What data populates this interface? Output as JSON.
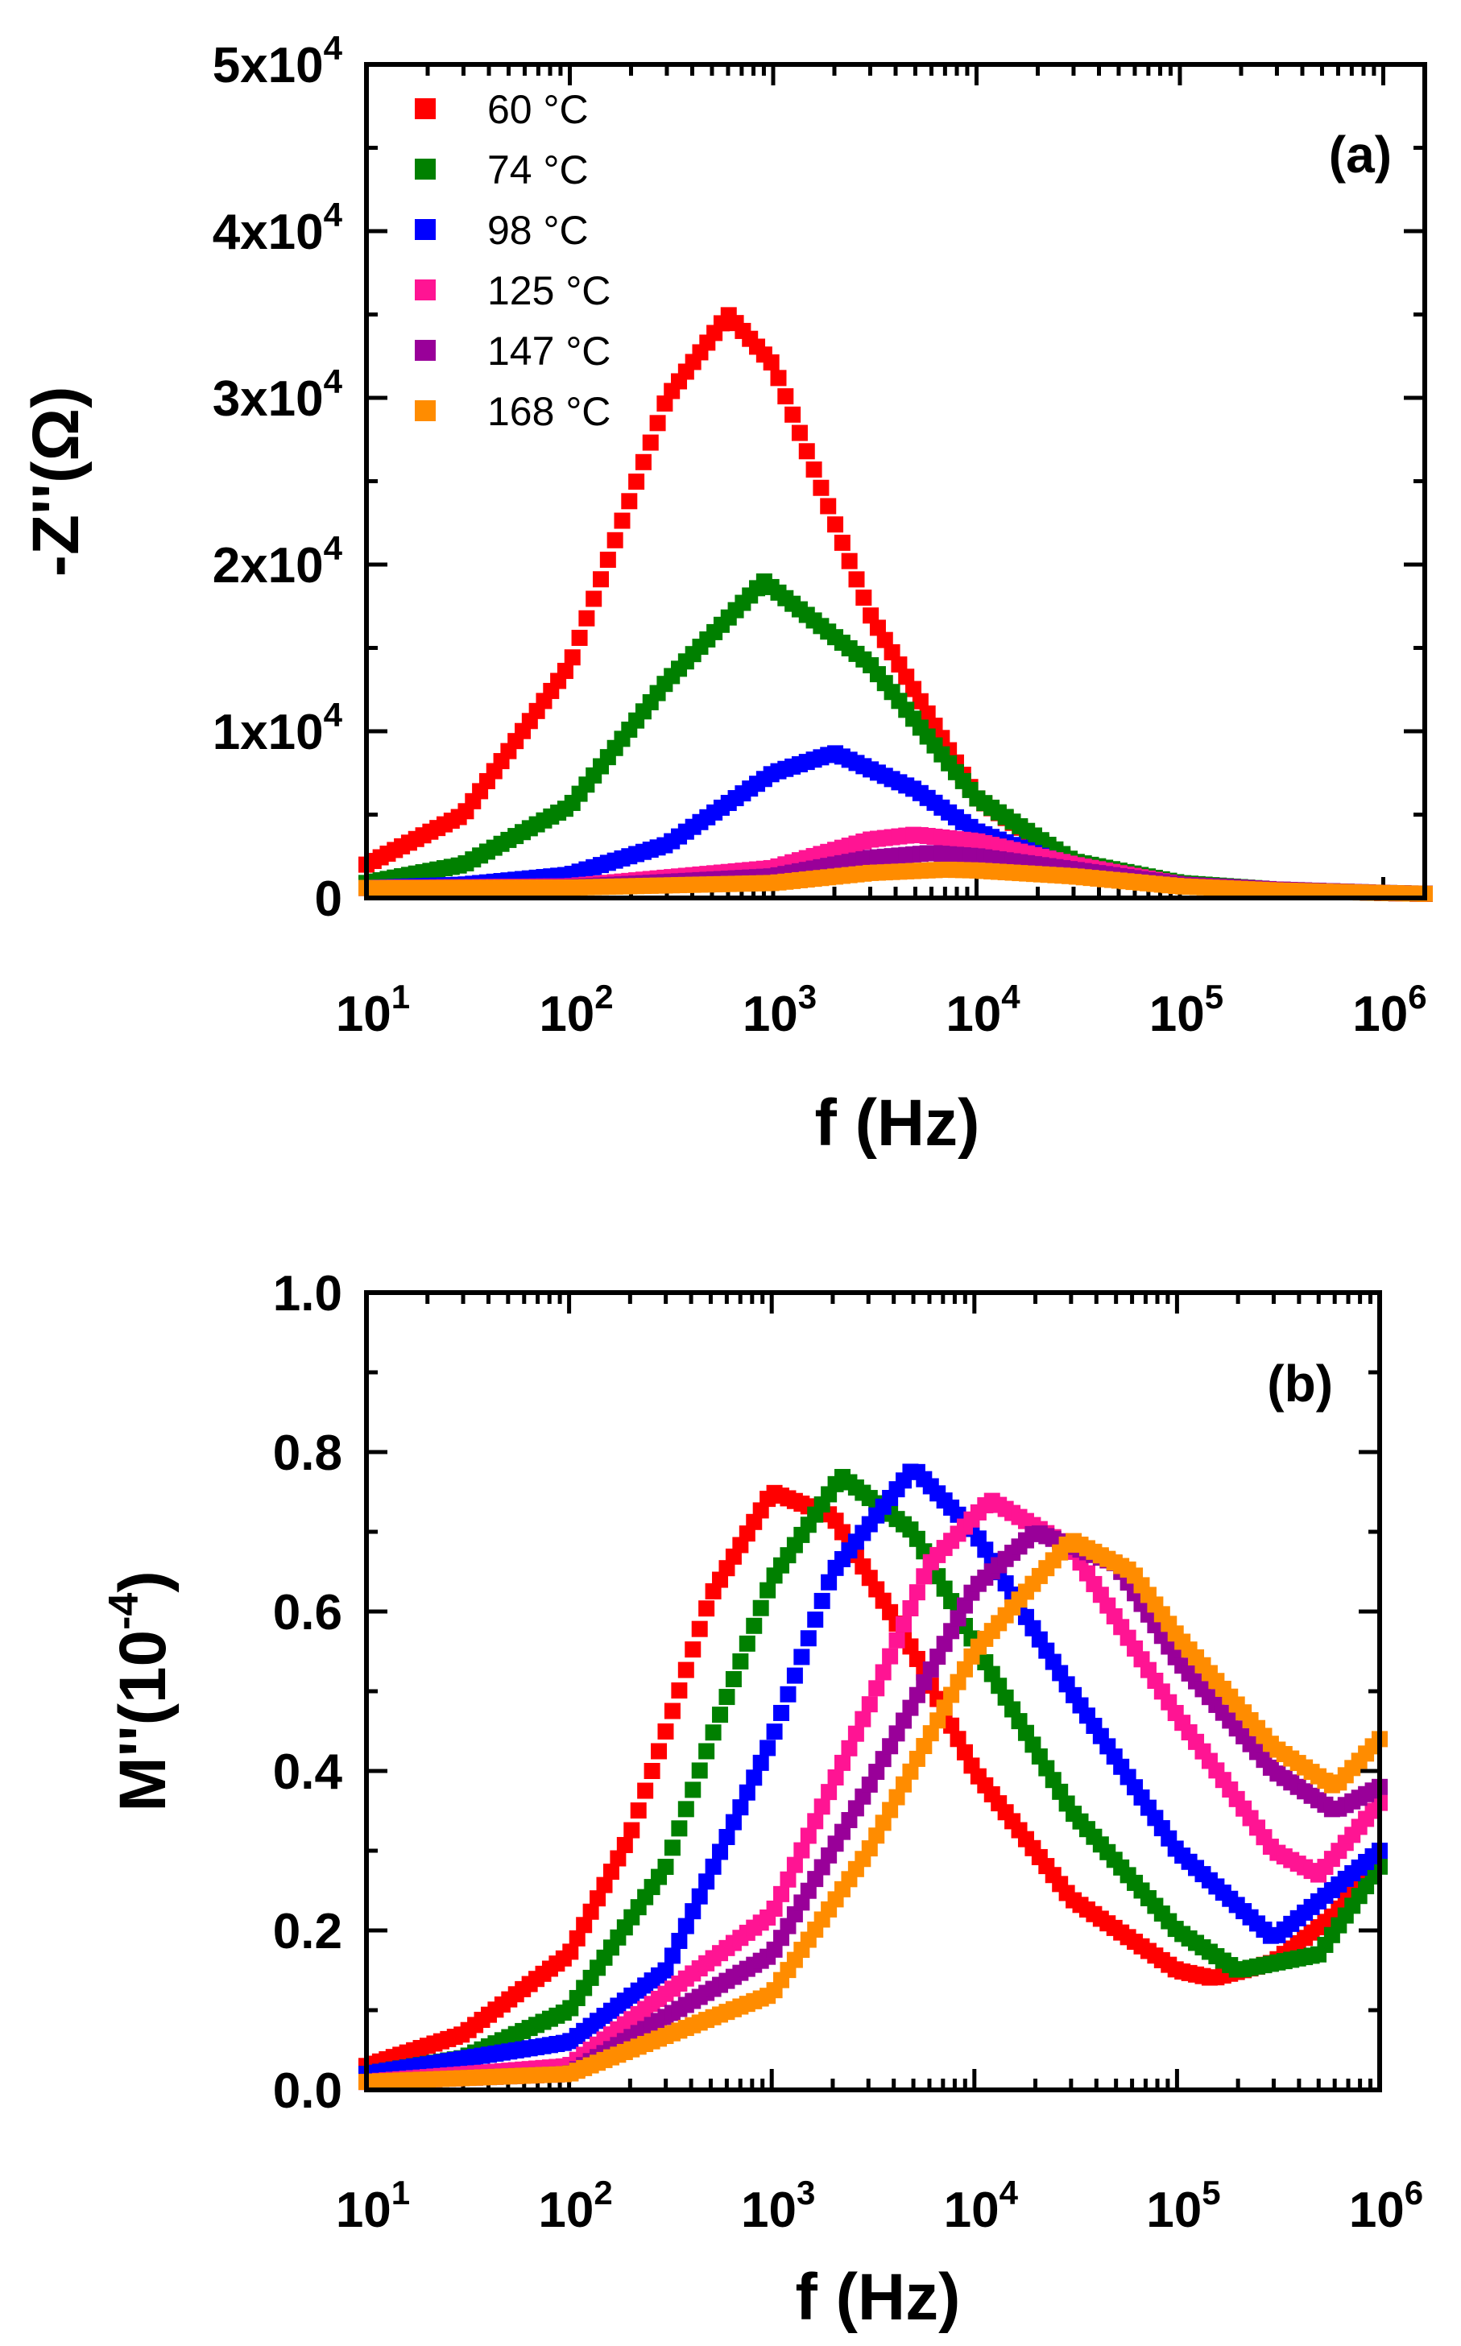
{
  "chart_data": [
    {
      "type": "scatter",
      "panel": "(a)",
      "xlabel": "f (Hz)",
      "ylabel": "-Z''(Ω)",
      "x_scale": "log",
      "xlim": [
        10,
        1600000
      ],
      "ylim": [
        0,
        50000
      ],
      "x_ticks": [
        {
          "base": "10",
          "exp": "1",
          "value": 10
        },
        {
          "base": "10",
          "exp": "2",
          "value": 100
        },
        {
          "base": "10",
          "exp": "3",
          "value": 1000
        },
        {
          "base": "10",
          "exp": "4",
          "value": 10000
        },
        {
          "base": "10",
          "exp": "5",
          "value": 100000
        },
        {
          "base": "10",
          "exp": "6",
          "value": 1000000
        }
      ],
      "y_ticks": [
        {
          "text": "0",
          "mant": "",
          "exp": "",
          "value": 0
        },
        {
          "text": "",
          "mant": "1x10",
          "exp": "4",
          "value": 10000
        },
        {
          "text": "",
          "mant": "2x10",
          "exp": "4",
          "value": 20000
        },
        {
          "text": "",
          "mant": "3x10",
          "exp": "4",
          "value": 30000
        },
        {
          "text": "",
          "mant": "4x10",
          "exp": "4",
          "value": 40000
        },
        {
          "text": "",
          "mant": "5x10",
          "exp": "4",
          "value": 50000
        }
      ],
      "legend_position": "top-left",
      "grid": false,
      "series": [
        {
          "name": "60 °C",
          "color": "#ff0000",
          "x": [
            10,
            30,
            100,
            300,
            600,
            1000,
            3000,
            10000,
            30000,
            100000,
            300000,
            1000000,
            1600000
          ],
          "y": [
            2000,
            5000,
            14000,
            30000,
            35000,
            32000,
            17000,
            6000,
            2000,
            800,
            500,
            300,
            250
          ]
        },
        {
          "name": "74 °C",
          "color": "#008000",
          "x": [
            10,
            30,
            100,
            300,
            900,
            3000,
            10000,
            30000,
            100000,
            300000,
            1000000,
            1600000
          ],
          "y": [
            900,
            2000,
            5500,
            13000,
            19000,
            14000,
            6000,
            2200,
            900,
            500,
            300,
            250
          ]
        },
        {
          "name": "98 °C",
          "color": "#0000ff",
          "x": [
            10,
            30,
            100,
            300,
            1000,
            2000,
            5000,
            10000,
            30000,
            100000,
            300000,
            1000000,
            1600000
          ],
          "y": [
            600,
            800,
            1400,
            3200,
            7500,
            8700,
            6500,
            4000,
            1800,
            800,
            500,
            300,
            250
          ]
        },
        {
          "name": "125 °C",
          "color": "#ff1493",
          "x": [
            10,
            100,
            1000,
            3000,
            5000,
            10000,
            30000,
            100000,
            300000,
            1000000,
            1600000
          ],
          "y": [
            600,
            700,
            1800,
            3500,
            3800,
            3400,
            2000,
            800,
            500,
            300,
            250
          ]
        },
        {
          "name": "147 °C",
          "color": "#990099",
          "x": [
            10,
            100,
            1000,
            3000,
            6000,
            10000,
            30000,
            100000,
            300000,
            1000000,
            1600000
          ],
          "y": [
            600,
            650,
            1300,
            2400,
            2700,
            2500,
            1700,
            800,
            500,
            300,
            250
          ]
        },
        {
          "name": "168 °C",
          "color": "#ff8c00",
          "x": [
            10,
            100,
            1000,
            3000,
            7000,
            10000,
            30000,
            100000,
            300000,
            1000000,
            1600000
          ],
          "y": [
            600,
            620,
            900,
            1500,
            1700,
            1650,
            1300,
            700,
            450,
            300,
            250
          ]
        }
      ]
    },
    {
      "type": "scatter",
      "panel": "(b)",
      "xlabel": "f (Hz)",
      "ylabel": "M''(10-4)",
      "ylabel_main": "M''(10",
      "ylabel_sup": "-4",
      "ylabel_close": ")",
      "x_scale": "log",
      "xlim": [
        10,
        1000000
      ],
      "ylim": [
        0,
        1.0
      ],
      "x_ticks": [
        {
          "base": "10",
          "exp": "1",
          "value": 10
        },
        {
          "base": "10",
          "exp": "2",
          "value": 100
        },
        {
          "base": "10",
          "exp": "3",
          "value": 1000
        },
        {
          "base": "10",
          "exp": "4",
          "value": 10000
        },
        {
          "base": "10",
          "exp": "5",
          "value": 100000
        },
        {
          "base": "10",
          "exp": "6",
          "value": 1000000
        }
      ],
      "y_ticks": [
        {
          "text": "0.0",
          "value": 0
        },
        {
          "text": "0.2",
          "value": 0.2
        },
        {
          "text": "0.4",
          "value": 0.4
        },
        {
          "text": "0.6",
          "value": 0.6
        },
        {
          "text": "0.8",
          "value": 0.8
        },
        {
          "text": "1.0",
          "value": 1.0
        }
      ],
      "grid": false,
      "series": [
        {
          "name": "60 °C",
          "color": "#ff0000",
          "x": [
            10,
            30,
            100,
            200,
            300,
            500,
            1000,
            2000,
            5000,
            10000,
            30000,
            100000,
            150000,
            300000,
            600000,
            1000000
          ],
          "y": [
            0.03,
            0.07,
            0.17,
            0.32,
            0.45,
            0.62,
            0.75,
            0.72,
            0.55,
            0.4,
            0.24,
            0.15,
            0.14,
            0.16,
            0.22,
            0.3
          ]
        },
        {
          "name": "74 °C",
          "color": "#008000",
          "x": [
            10,
            30,
            100,
            300,
            500,
            1000,
            2200,
            5000,
            10000,
            30000,
            100000,
            200000,
            500000,
            1000000
          ],
          "y": [
            0.02,
            0.04,
            0.1,
            0.28,
            0.44,
            0.64,
            0.77,
            0.7,
            0.56,
            0.35,
            0.2,
            0.15,
            0.17,
            0.28
          ]
        },
        {
          "name": "98 °C",
          "color": "#0000ff",
          "x": [
            10,
            100,
            300,
            1000,
            2000,
            5000,
            10000,
            30000,
            100000,
            300000,
            1000000
          ],
          "y": [
            0.02,
            0.06,
            0.15,
            0.44,
            0.65,
            0.78,
            0.7,
            0.5,
            0.3,
            0.19,
            0.3
          ]
        },
        {
          "name": "125 °C",
          "color": "#ff1493",
          "x": [
            10,
            100,
            1000,
            3000,
            6000,
            12000,
            30000,
            100000,
            300000,
            500000,
            1000000
          ],
          "y": [
            0.01,
            0.03,
            0.22,
            0.48,
            0.66,
            0.74,
            0.68,
            0.47,
            0.3,
            0.27,
            0.36
          ]
        },
        {
          "name": "147 °C",
          "color": "#990099",
          "x": [
            10,
            100,
            1000,
            3000,
            10000,
            20000,
            50000,
            100000,
            300000,
            600000,
            1000000
          ],
          "y": [
            0.01,
            0.02,
            0.17,
            0.38,
            0.63,
            0.7,
            0.66,
            0.54,
            0.4,
            0.35,
            0.38
          ]
        },
        {
          "name": "168 °C",
          "color": "#ff8c00",
          "x": [
            10,
            100,
            1000,
            3000,
            10000,
            30000,
            60000,
            100000,
            300000,
            600000,
            1000000
          ],
          "y": [
            0.01,
            0.02,
            0.12,
            0.3,
            0.55,
            0.69,
            0.65,
            0.57,
            0.43,
            0.38,
            0.44
          ]
        }
      ]
    }
  ]
}
